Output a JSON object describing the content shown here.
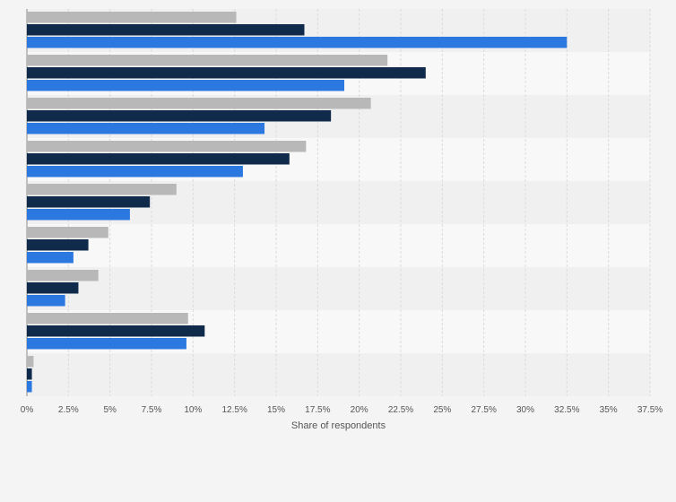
{
  "chart_data": {
    "type": "bar",
    "orientation": "horizontal",
    "categories": [
      "",
      "",
      "",
      "",
      "",
      "",
      "",
      "",
      ""
    ],
    "series": [
      {
        "color": "#b8b8b8",
        "values": [
          12.6,
          21.7,
          20.7,
          16.8,
          9.0,
          4.9,
          4.3,
          9.7,
          0.4
        ]
      },
      {
        "color": "#0f2a4a",
        "values": [
          16.7,
          24.0,
          18.3,
          15.8,
          7.4,
          3.7,
          3.1,
          10.7,
          0.3
        ]
      },
      {
        "color": "#2a78e0",
        "values": [
          32.5,
          19.1,
          14.3,
          13.0,
          6.2,
          2.8,
          2.3,
          9.6,
          0.3
        ]
      }
    ],
    "xlim": [
      0,
      37.5
    ],
    "ticks": [
      "0%",
      "2.5%",
      "5%",
      "7.5%",
      "10%",
      "12.5%",
      "15%",
      "17.5%",
      "20%",
      "22.5%",
      "25%",
      "27.5%",
      "30%",
      "32.5%",
      "35%",
      "37.5%"
    ],
    "tick_values": [
      0,
      2.5,
      5,
      7.5,
      10,
      12.5,
      15,
      17.5,
      20,
      22.5,
      25,
      27.5,
      30,
      32.5,
      35,
      37.5
    ],
    "xlabel": "Share of respondents",
    "grid": true,
    "legend": "none"
  }
}
